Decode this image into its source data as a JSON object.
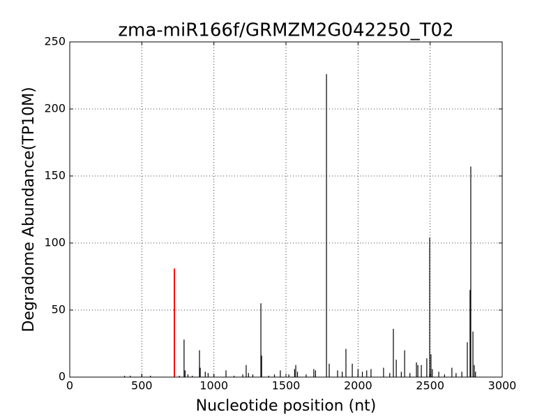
{
  "chart_data": {
    "type": "stem",
    "title": "zma-miR166f/GRMZM2G042250_T02",
    "x_label": "Nucleotide position (nt)",
    "y_label": "Degradome Abundance(TP10M)",
    "series": [
      {
        "color": "#000000",
        "x": [
          380,
          420,
          500,
          560,
          760,
          793,
          800,
          820,
          850,
          900,
          905,
          940,
          960,
          1000,
          1084,
          1140,
          1200,
          1224,
          1240,
          1270,
          1326,
          1331,
          1380,
          1420,
          1461,
          1520,
          1560,
          1568,
          1580,
          1640,
          1693,
          1705,
          1781,
          1800,
          1858,
          1890,
          1916,
          1960,
          2000,
          2030,
          2060,
          2090,
          2177,
          2220,
          2245,
          2265,
          2300,
          2323,
          2360,
          2405,
          2415,
          2439,
          2477,
          2497,
          2506,
          2515,
          2560,
          2600,
          2651,
          2680,
          2720,
          2758,
          2777,
          2782,
          2797,
          2806,
          2815
        ],
        "values": [
          1,
          1,
          2,
          1,
          1,
          28,
          5,
          2,
          1,
          20,
          7,
          4,
          3,
          2,
          5,
          1,
          2,
          9,
          3,
          2,
          55,
          16,
          1,
          2,
          5,
          2,
          6,
          9,
          4,
          2,
          6,
          5,
          226,
          10,
          5,
          4,
          21,
          10,
          6,
          4,
          5,
          6,
          7,
          3,
          36,
          13,
          4,
          20,
          3,
          11,
          9,
          9,
          14,
          104,
          17,
          6,
          4,
          2,
          7,
          3,
          4,
          26,
          65,
          157,
          34,
          9,
          4
        ]
      },
      {
        "color": "#ff0000",
        "x": [
          726
        ],
        "values": [
          81
        ]
      }
    ],
    "xlim": [
      0,
      3000
    ],
    "xticks": [
      0,
      500,
      1000,
      1500,
      2000,
      2500,
      3000
    ],
    "ylim": [
      0,
      250
    ],
    "yticks": [
      0,
      50,
      100,
      150,
      200,
      250
    ],
    "grid": true
  }
}
